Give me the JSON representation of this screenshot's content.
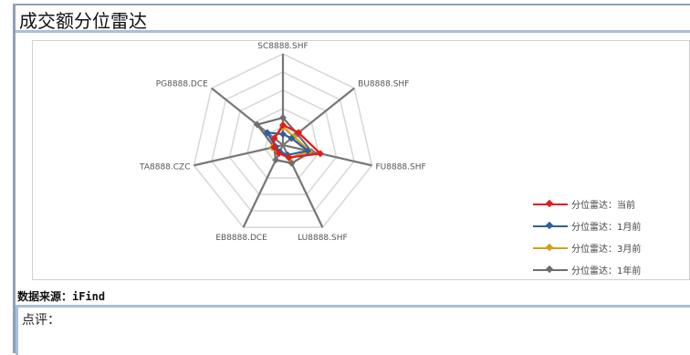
{
  "page": {
    "title": "成交额分位雷达",
    "source_label": "数据来源：iFind",
    "comment_label": "点评："
  },
  "colors": {
    "frame": "#8ea2b9",
    "grid": "#d9d9d9",
    "axis": "#777777"
  },
  "chart_data": {
    "type": "radar",
    "title": "",
    "axes": [
      "SC8888.SHF",
      "BU8888.SHF",
      "FU8888.SHF",
      "LU8888.SHF",
      "EB8888.DCE",
      "TA8888.CZC",
      "PG8888.DCE"
    ],
    "range": [
      0,
      1
    ],
    "grid_levels": 5,
    "grid": true,
    "legend_position": "right",
    "series": [
      {
        "name": "分位雷达：当前",
        "color": "#e41a1c",
        "values": [
          0.22,
          0.22,
          0.42,
          0.15,
          0.1,
          0.1,
          0.12
        ]
      },
      {
        "name": "分位雷达：1月前",
        "color": "#2e5f9e",
        "values": [
          0.12,
          0.12,
          0.28,
          0.12,
          0.08,
          0.08,
          0.22
        ]
      },
      {
        "name": "分位雷达：3月前",
        "color": "#d4a017",
        "values": [
          0.2,
          0.15,
          0.3,
          0.16,
          0.1,
          0.12,
          0.12
        ]
      },
      {
        "name": "分位雷达：1年前",
        "color": "#6e6e6e",
        "values": [
          0.3,
          0.2,
          0.32,
          0.22,
          0.18,
          0.1,
          0.36
        ]
      }
    ]
  }
}
